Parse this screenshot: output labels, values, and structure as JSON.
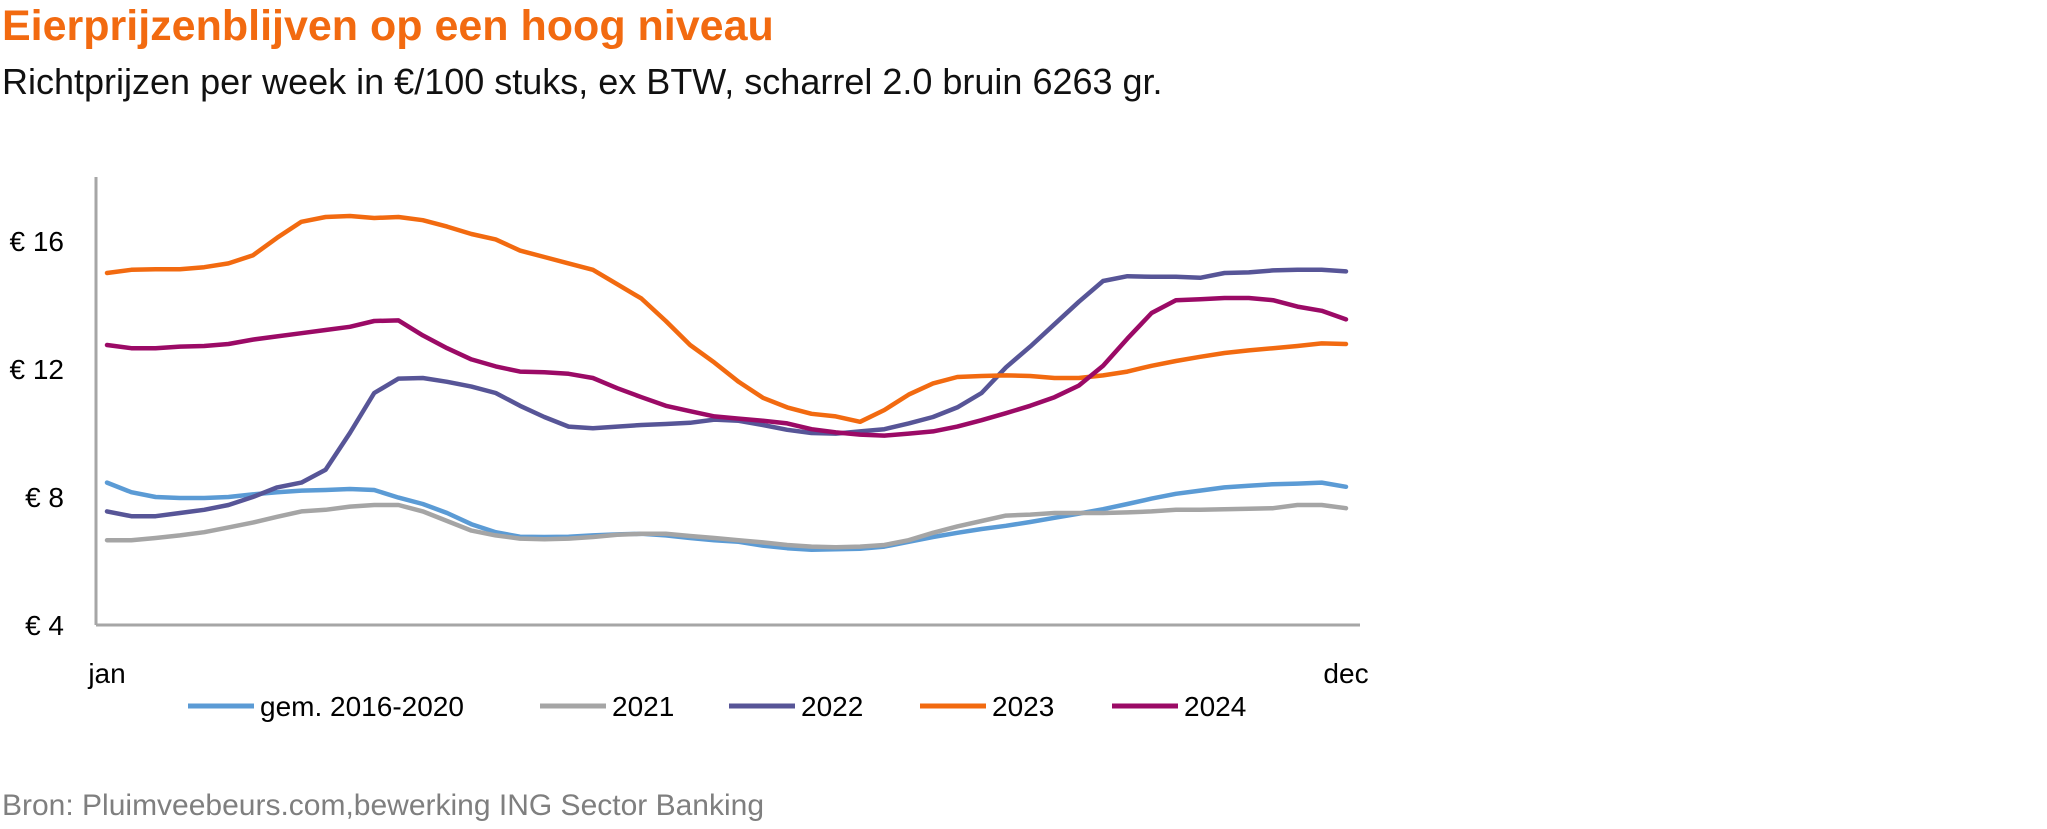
{
  "title": "Eierprijzenblijven op een hoog niveau",
  "subtitle": "Richtprijzen per week in €/100 stuks, ex BTW, scharrel 2.0 bruin 62​63 gr.",
  "source": "Bron: Pluimveebeurs.com,bewerking ING Sector Banking",
  "colors": {
    "title": "#F26A10",
    "axis": "#A6A6A6",
    "gem_2016_2020": "#5B9BD5",
    "y2021": "#A5A5A5",
    "y2022": "#575597",
    "y2023": "#F26A10",
    "y2024": "#9B0A66"
  },
  "chart_data": {
    "type": "line",
    "x": [
      1,
      2,
      3,
      4,
      5,
      6,
      7,
      8,
      9,
      10,
      11,
      12,
      13,
      14,
      15,
      16,
      17,
      18,
      19,
      20,
      21,
      22,
      23,
      24,
      25,
      26,
      27,
      28,
      29,
      30,
      31,
      32,
      33,
      34,
      35,
      36,
      37,
      38,
      39,
      40,
      41,
      42,
      43,
      44,
      45,
      46,
      47,
      48,
      49,
      50,
      51,
      52
    ],
    "x_tick_labels": [
      "jan",
      "dec"
    ],
    "y_tick_labels": [
      "€ 4",
      "€ 8",
      "€ 12",
      "€ 16"
    ],
    "y_ticks": [
      4,
      8,
      12,
      16
    ],
    "ylim": [
      4,
      18
    ],
    "legend_position": "bottom",
    "series": [
      {
        "name": "gem. 2016-2020",
        "color_key": "gem_2016_2020",
        "values": [
          8.45,
          8.15,
          8.0,
          7.97,
          7.97,
          8.0,
          8.08,
          8.15,
          8.2,
          8.22,
          8.25,
          8.22,
          7.98,
          7.78,
          7.5,
          7.15,
          6.9,
          6.76,
          6.75,
          6.76,
          6.8,
          6.83,
          6.85,
          6.8,
          6.72,
          6.65,
          6.6,
          6.48,
          6.4,
          6.35,
          6.37,
          6.38,
          6.45,
          6.6,
          6.75,
          6.88,
          7.0,
          7.1,
          7.22,
          7.35,
          7.48,
          7.62,
          7.78,
          7.95,
          8.1,
          8.2,
          8.3,
          8.35,
          8.4,
          8.42,
          8.45,
          8.32
        ]
      },
      {
        "name": "2021",
        "color_key": "y2021",
        "values": [
          6.65,
          6.65,
          6.72,
          6.8,
          6.9,
          7.05,
          7.2,
          7.38,
          7.55,
          7.6,
          7.7,
          7.75,
          7.75,
          7.55,
          7.25,
          6.95,
          6.8,
          6.7,
          6.68,
          6.7,
          6.75,
          6.82,
          6.85,
          6.85,
          6.78,
          6.72,
          6.65,
          6.58,
          6.5,
          6.45,
          6.43,
          6.45,
          6.5,
          6.65,
          6.88,
          7.08,
          7.25,
          7.42,
          7.45,
          7.5,
          7.5,
          7.5,
          7.52,
          7.55,
          7.6,
          7.6,
          7.62,
          7.63,
          7.65,
          7.75,
          7.75,
          7.65
        ]
      },
      {
        "name": "2022",
        "color_key": "y2022",
        "values": [
          7.55,
          7.4,
          7.4,
          7.5,
          7.6,
          7.75,
          8.0,
          8.3,
          8.45,
          8.85,
          10.0,
          11.25,
          11.7,
          11.72,
          11.6,
          11.45,
          11.25,
          10.85,
          10.5,
          10.2,
          10.15,
          10.2,
          10.25,
          10.28,
          10.32,
          10.42,
          10.38,
          10.25,
          10.1,
          10.0,
          9.98,
          10.05,
          10.12,
          10.3,
          10.5,
          10.8,
          11.25,
          12.05,
          12.7,
          13.4,
          14.1,
          14.75,
          14.9,
          14.88,
          14.88,
          14.85,
          15.0,
          15.02,
          15.08,
          15.1,
          15.1,
          15.05
        ]
      },
      {
        "name": "2023",
        "color_key": "y2023",
        "values": [
          15.0,
          15.1,
          15.12,
          15.12,
          15.18,
          15.3,
          15.55,
          16.1,
          16.6,
          16.75,
          16.78,
          16.72,
          16.75,
          16.65,
          16.45,
          16.22,
          16.05,
          15.7,
          15.5,
          15.3,
          15.1,
          14.65,
          14.2,
          13.5,
          12.75,
          12.2,
          11.6,
          11.1,
          10.8,
          10.6,
          10.52,
          10.35,
          10.72,
          11.2,
          11.55,
          11.75,
          11.78,
          11.8,
          11.78,
          11.72,
          11.72,
          11.8,
          11.92,
          12.1,
          12.25,
          12.38,
          12.5,
          12.58,
          12.65,
          12.72,
          12.8,
          12.78
        ]
      },
      {
        "name": "2024",
        "color_key": "y2024",
        "values": [
          12.75,
          12.65,
          12.65,
          12.7,
          12.72,
          12.78,
          12.92,
          13.02,
          13.12,
          13.22,
          13.32,
          13.5,
          13.52,
          13.05,
          12.65,
          12.3,
          12.08,
          11.92,
          11.9,
          11.85,
          11.72,
          11.4,
          11.12,
          10.85,
          10.68,
          10.52,
          10.45,
          10.38,
          10.3,
          10.12,
          10.02,
          9.95,
          9.92,
          9.98,
          10.05,
          10.2,
          10.4,
          10.62,
          10.85,
          11.12,
          11.48,
          12.1,
          12.95,
          13.75,
          14.15,
          14.18,
          14.22,
          14.22,
          14.15,
          13.95,
          13.82,
          13.55
        ]
      }
    ]
  }
}
